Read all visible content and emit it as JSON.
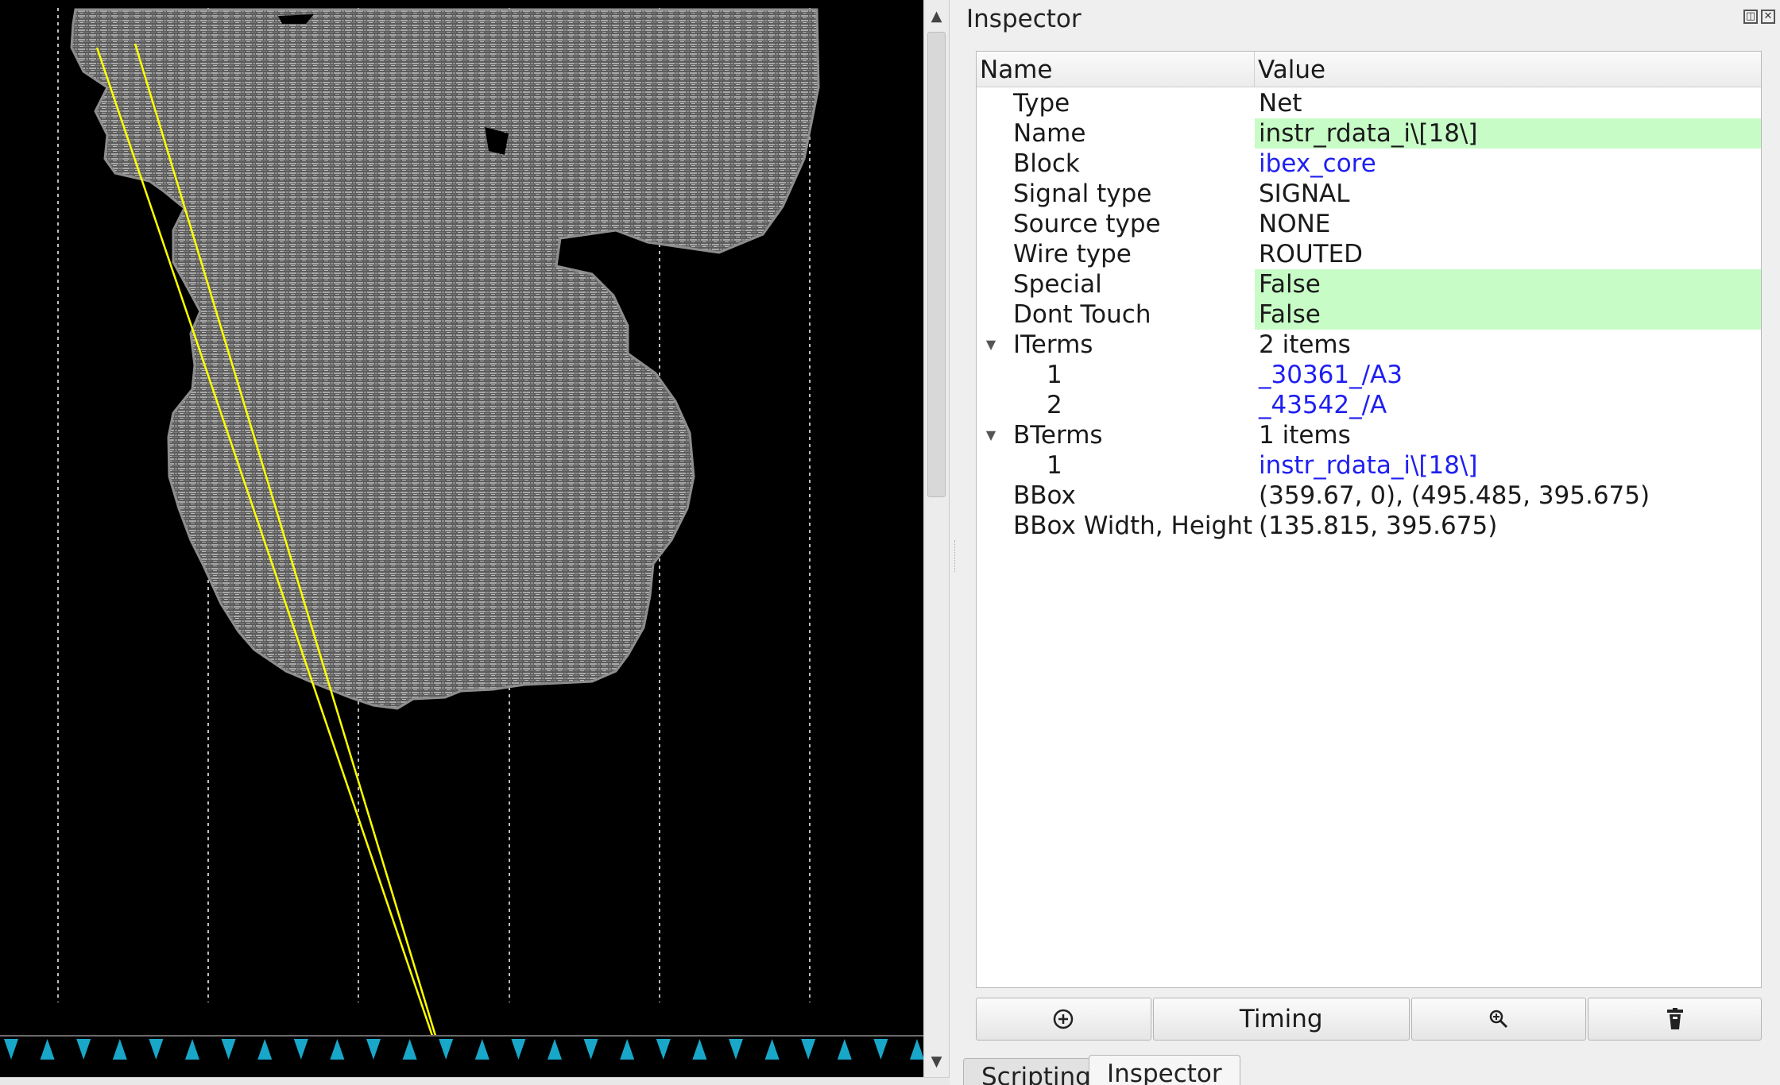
{
  "viewer": {
    "scroll_up_icon": "triangle-up",
    "scroll_down_icon": "triangle-down",
    "colors": {
      "background": "#000000",
      "cells": "#9a9a9a",
      "net_highlight": "#ffff00",
      "io_pins": "#19a7c9",
      "tracks": "#bbbbbb"
    }
  },
  "inspector": {
    "title": "Inspector",
    "header": {
      "name": "Name",
      "value": "Value"
    },
    "rows": [
      {
        "name": "Type",
        "value": "Net"
      },
      {
        "name": "Name",
        "value": "instr_rdata_i\\[18\\]"
      },
      {
        "name": "Block",
        "value": "ibex_core"
      },
      {
        "name": "Signal type",
        "value": "SIGNAL"
      },
      {
        "name": "Source type",
        "value": "NONE"
      },
      {
        "name": "Wire type",
        "value": "ROUTED"
      },
      {
        "name": "Special",
        "value": "False"
      },
      {
        "name": "Dont Touch",
        "value": "False"
      },
      {
        "name": "ITerms",
        "value": "2 items"
      },
      {
        "name": "1",
        "value": "_30361_/A3"
      },
      {
        "name": "2",
        "value": "_43542_/A"
      },
      {
        "name": "BTerms",
        "value": "1 items"
      },
      {
        "name": "1",
        "value": "instr_rdata_i\\[18\\]"
      },
      {
        "name": "BBox",
        "value": "(359.67, 0), (495.485, 395.675)"
      },
      {
        "name": "BBox Width, Height",
        "value": "(135.815, 395.675)"
      }
    ],
    "buttons": {
      "focus_icon": "focus-icon",
      "timing_label": "Timing",
      "zoom_icon": "zoom-icon",
      "delete_icon": "trash-icon"
    },
    "highlight_color": "#c7fcc7",
    "link_color": "#1f1ff0"
  },
  "tabs": [
    {
      "label": "Scripting"
    },
    {
      "label": "Inspector"
    }
  ]
}
